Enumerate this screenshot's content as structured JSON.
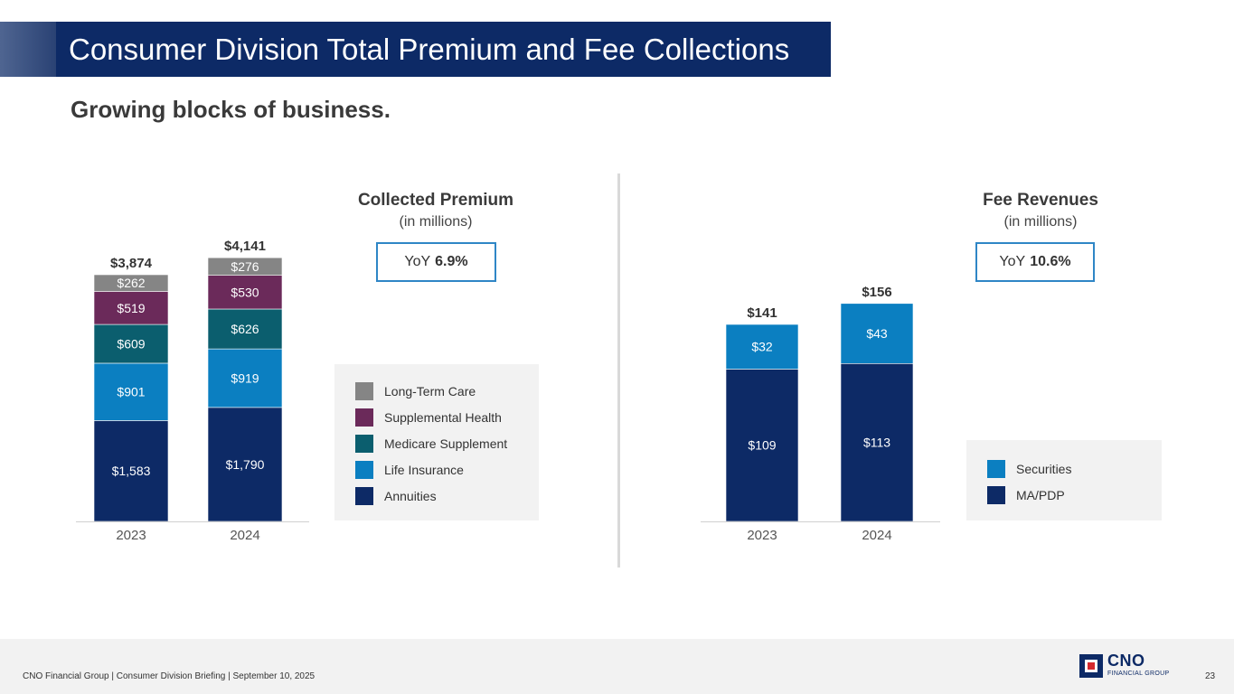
{
  "slide": {
    "title": "Consumer Division Total Premium and Fee Collections",
    "subtitle": "Growing blocks of business."
  },
  "chart_data": [
    {
      "type": "bar",
      "stacked": true,
      "title": "Collected Premium",
      "subtitle": "(in millions)",
      "yoy_prefix": "YoY",
      "yoy_value": "6.9%",
      "categories": [
        "2023",
        "2024"
      ],
      "totals": [
        3874,
        4141
      ],
      "total_labels": [
        "$3,874",
        "$4,141"
      ],
      "series": [
        {
          "name": "Annuities",
          "color": "#0d2a66",
          "values": [
            1583,
            1790
          ],
          "labels": [
            "$1,583",
            "$1,790"
          ]
        },
        {
          "name": "Life Insurance",
          "color": "#0b7fc1",
          "values": [
            901,
            919
          ],
          "labels": [
            "$901",
            "$919"
          ]
        },
        {
          "name": "Medicare Supplement",
          "color": "#0b5e6e",
          "values": [
            609,
            626
          ],
          "labels": [
            "$609",
            "$626"
          ]
        },
        {
          "name": "Supplemental Health",
          "color": "#6b2a5a",
          "values": [
            519,
            530
          ],
          "labels": [
            "$519",
            "$530"
          ]
        },
        {
          "name": "Long-Term Care",
          "color": "#858585",
          "values": [
            262,
            276
          ],
          "labels": [
            "$262",
            "$276"
          ]
        }
      ],
      "legend_order": [
        "Long-Term Care",
        "Supplemental Health",
        "Medicare Supplement",
        "Life Insurance",
        "Annuities"
      ],
      "legend_position": "right"
    },
    {
      "type": "bar",
      "stacked": true,
      "title": "Fee Revenues",
      "subtitle": "(in millions)",
      "yoy_prefix": "YoY",
      "yoy_value": "10.6%",
      "categories": [
        "2023",
        "2024"
      ],
      "totals": [
        141,
        156
      ],
      "total_labels": [
        "$141",
        "$156"
      ],
      "series": [
        {
          "name": "MA/PDP",
          "color": "#0d2a66",
          "values": [
            109,
            113
          ],
          "labels": [
            "$109",
            "$113"
          ]
        },
        {
          "name": "Securities",
          "color": "#0b7fc1",
          "values": [
            32,
            43
          ],
          "labels": [
            "$32",
            "$43"
          ]
        }
      ],
      "legend_order": [
        "Securities",
        "MA/PDP"
      ],
      "legend_position": "right"
    }
  ],
  "footer": {
    "text": "CNO Financial Group  |  Consumer Division Briefing  |  September 10, 2025",
    "page": "23",
    "logo_name": "CNO",
    "logo_sub": "FINANCIAL GROUP"
  }
}
